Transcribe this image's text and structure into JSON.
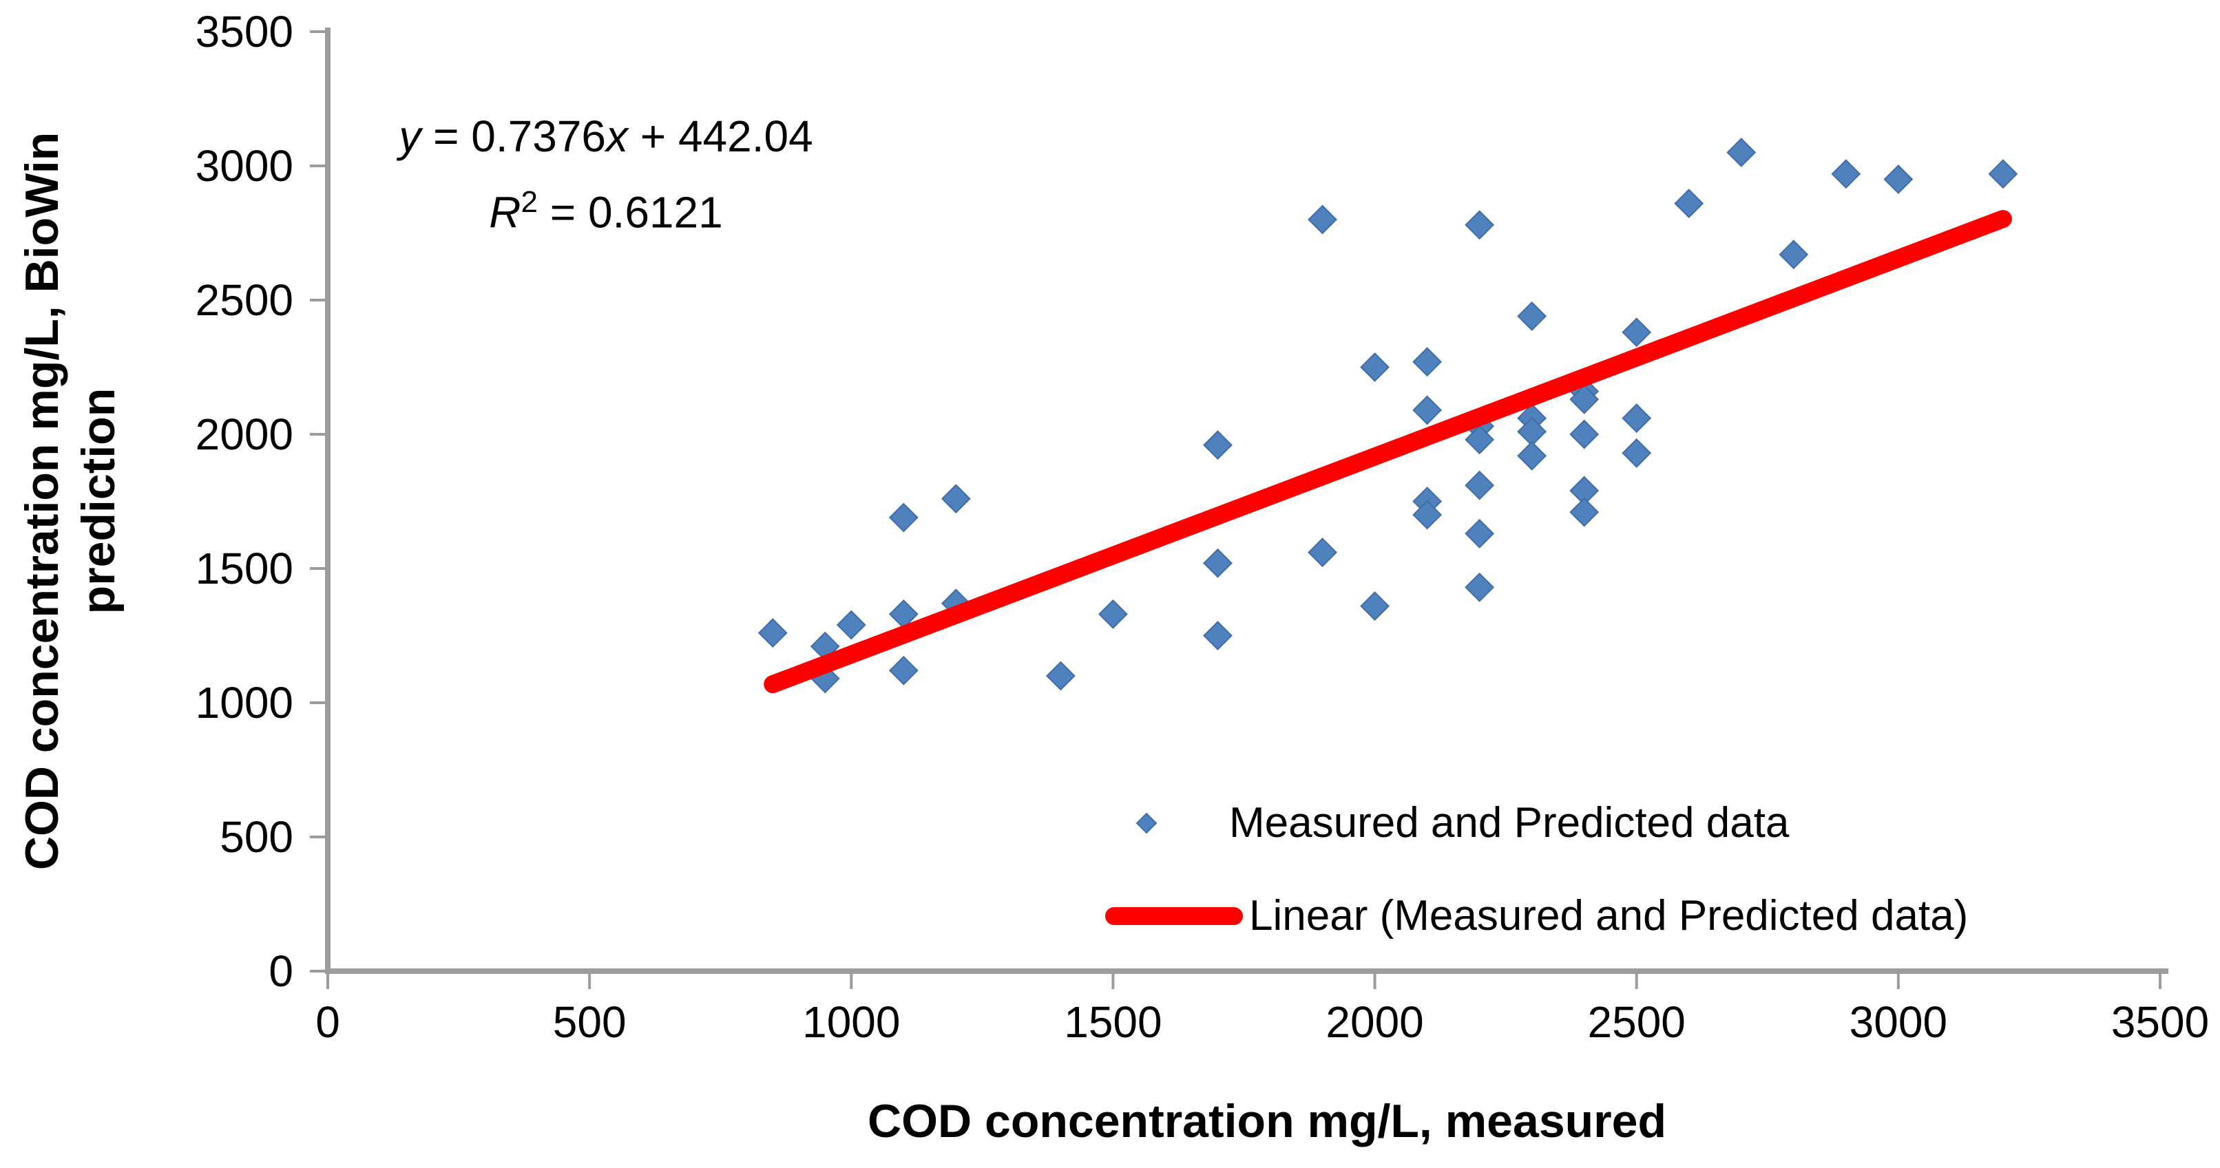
{
  "chart_data": {
    "type": "scatter",
    "title": "",
    "xlabel": "COD concentration mg/L, measured",
    "ylabel": "COD concentration mg/L, BioWin prediction",
    "ylabel_lines": [
      "COD concentration mg/L, BioWin",
      "prediction"
    ],
    "xlim": [
      0,
      3500
    ],
    "ylim": [
      0,
      3500
    ],
    "xticks": [
      0,
      500,
      1000,
      1500,
      2000,
      2500,
      3000,
      3500
    ],
    "yticks": [
      0,
      500,
      1000,
      1500,
      2000,
      2500,
      3000,
      3500
    ],
    "grid": false,
    "legend_position": "inside-bottom-right",
    "axis_color": "#9C9C9C",
    "series": [
      {
        "name": "Measured and Predicted data",
        "type": "scatter",
        "marker": "diamond",
        "color": "#4F81BD",
        "points": [
          [
            850,
            1260
          ],
          [
            950,
            1210
          ],
          [
            950,
            1090
          ],
          [
            1000,
            1290
          ],
          [
            1100,
            1690
          ],
          [
            1100,
            1330
          ],
          [
            1100,
            1120
          ],
          [
            1200,
            1760
          ],
          [
            1200,
            1370
          ],
          [
            1400,
            1100
          ],
          [
            1500,
            1330
          ],
          [
            1700,
            1960
          ],
          [
            1700,
            1520
          ],
          [
            1700,
            1250
          ],
          [
            1900,
            2800
          ],
          [
            1900,
            1560
          ],
          [
            2000,
            2250
          ],
          [
            2000,
            1360
          ],
          [
            2100,
            2270
          ],
          [
            2100,
            2090
          ],
          [
            2100,
            1750
          ],
          [
            2100,
            1700
          ],
          [
            2200,
            2780
          ],
          [
            2200,
            2030
          ],
          [
            2200,
            1980
          ],
          [
            2200,
            1810
          ],
          [
            2200,
            1630
          ],
          [
            2200,
            1430
          ],
          [
            2300,
            2440
          ],
          [
            2300,
            2060
          ],
          [
            2300,
            2010
          ],
          [
            2300,
            1920
          ],
          [
            2400,
            2160
          ],
          [
            2400,
            2130
          ],
          [
            2400,
            2000
          ],
          [
            2400,
            1790
          ],
          [
            2400,
            1710
          ],
          [
            2500,
            2380
          ],
          [
            2500,
            2060
          ],
          [
            2500,
            1930
          ],
          [
            2600,
            2860
          ],
          [
            2700,
            3050
          ],
          [
            2800,
            2670
          ],
          [
            2900,
            2970
          ],
          [
            3000,
            2950
          ],
          [
            3200,
            2970
          ]
        ]
      },
      {
        "name": "Linear (Measured and Predicted data)",
        "type": "trendline",
        "color": "#FF0000",
        "slope": 0.7376,
        "intercept": 442.04,
        "x_range": [
          850,
          3200
        ]
      }
    ],
    "annotation": {
      "equation": "y = 0.7376x + 442.04",
      "r_squared": "R2 = 0.6121"
    }
  },
  "equation": {
    "var_y": "y",
    "mid": " = 0.7376",
    "var_x": "x",
    "tail": " + 442.04",
    "r_base": "R",
    "r_sup": "2",
    "r_tail": " = 0.6121"
  },
  "legend": {
    "item_points": "Measured and Predicted data",
    "item_line": "Linear (Measured and Predicted data)"
  },
  "axes": {
    "x_title": "COD concentration mg/L, measured",
    "y_title_line1": "COD concentration mg/L, BioWin",
    "y_title_line2": "prediction"
  }
}
